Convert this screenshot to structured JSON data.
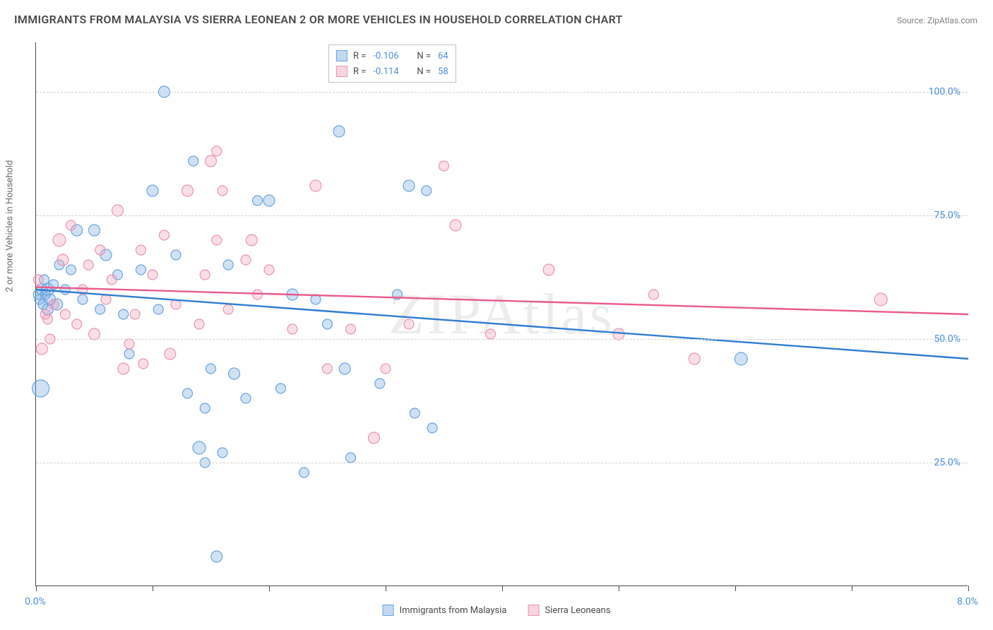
{
  "title": "IMMIGRANTS FROM MALAYSIA VS SIERRA LEONEAN 2 OR MORE VEHICLES IN HOUSEHOLD CORRELATION CHART",
  "source_label": "Source: ",
  "source_value": "ZipAtlas.com",
  "y_axis_label": "2 or more Vehicles in Household",
  "watermark": "ZIPAtlas",
  "chart": {
    "type": "scatter",
    "xlim": [
      0,
      8.0
    ],
    "ylim": [
      0,
      110
    ],
    "x_ticks": [
      0,
      1,
      2,
      3,
      4,
      5,
      6,
      7,
      8
    ],
    "x_tick_labels_shown": {
      "0": "0.0%",
      "8": "8.0%"
    },
    "y_grid": [
      25,
      50,
      75,
      100
    ],
    "y_tick_labels": {
      "25": "25.0%",
      "50": "50.0%",
      "75": "75.0%",
      "100": "100.0%"
    },
    "background_color": "#ffffff",
    "grid_color": "#d0d0d0",
    "axis_color": "#4a4a4a",
    "tick_label_color": "#4a8fd8",
    "series": [
      {
        "name": "Immigrants from Malaysia",
        "fill_color": "rgba(120,170,225,0.35)",
        "stroke_color": "#6aa6de",
        "line_color": "#2f7dd1",
        "r_value": "-0.106",
        "n_value": "64",
        "regression": {
          "x1": 0,
          "y1": 60,
          "x2": 8,
          "y2": 46
        },
        "points": [
          {
            "x": 0.02,
            "y": 59,
            "r": 7
          },
          {
            "x": 0.03,
            "y": 58,
            "r": 7
          },
          {
            "x": 0.05,
            "y": 60,
            "r": 8
          },
          {
            "x": 0.06,
            "y": 57,
            "r": 7
          },
          {
            "x": 0.07,
            "y": 62,
            "r": 7
          },
          {
            "x": 0.08,
            "y": 59,
            "r": 7
          },
          {
            "x": 0.1,
            "y": 60,
            "r": 9
          },
          {
            "x": 0.1,
            "y": 56,
            "r": 8
          },
          {
            "x": 0.04,
            "y": 40,
            "r": 12
          },
          {
            "x": 0.12,
            "y": 58,
            "r": 8
          },
          {
            "x": 0.15,
            "y": 61,
            "r": 7
          },
          {
            "x": 0.18,
            "y": 57,
            "r": 8
          },
          {
            "x": 0.2,
            "y": 65,
            "r": 7
          },
          {
            "x": 0.25,
            "y": 60,
            "r": 7
          },
          {
            "x": 0.3,
            "y": 64,
            "r": 7
          },
          {
            "x": 0.35,
            "y": 72,
            "r": 8
          },
          {
            "x": 0.4,
            "y": 58,
            "r": 7
          },
          {
            "x": 0.5,
            "y": 72,
            "r": 8
          },
          {
            "x": 0.55,
            "y": 56,
            "r": 7
          },
          {
            "x": 0.6,
            "y": 67,
            "r": 8
          },
          {
            "x": 0.7,
            "y": 63,
            "r": 7
          },
          {
            "x": 0.75,
            "y": 55,
            "r": 7
          },
          {
            "x": 0.8,
            "y": 47,
            "r": 7
          },
          {
            "x": 0.9,
            "y": 64,
            "r": 7
          },
          {
            "x": 1.0,
            "y": 80,
            "r": 8
          },
          {
            "x": 1.05,
            "y": 56,
            "r": 7
          },
          {
            "x": 1.1,
            "y": 100,
            "r": 8
          },
          {
            "x": 1.2,
            "y": 67,
            "r": 7
          },
          {
            "x": 1.3,
            "y": 39,
            "r": 7
          },
          {
            "x": 1.35,
            "y": 86,
            "r": 7
          },
          {
            "x": 1.4,
            "y": 28,
            "r": 9
          },
          {
            "x": 1.45,
            "y": 25,
            "r": 7
          },
          {
            "x": 1.45,
            "y": 36,
            "r": 7
          },
          {
            "x": 1.5,
            "y": 44,
            "r": 7
          },
          {
            "x": 1.55,
            "y": 6,
            "r": 8
          },
          {
            "x": 1.6,
            "y": 27,
            "r": 7
          },
          {
            "x": 1.65,
            "y": 65,
            "r": 7
          },
          {
            "x": 1.7,
            "y": 43,
            "r": 8
          },
          {
            "x": 1.8,
            "y": 38,
            "r": 7
          },
          {
            "x": 1.9,
            "y": 78,
            "r": 7
          },
          {
            "x": 2.0,
            "y": 78,
            "r": 8
          },
          {
            "x": 2.1,
            "y": 40,
            "r": 7
          },
          {
            "x": 2.2,
            "y": 59,
            "r": 8
          },
          {
            "x": 2.3,
            "y": 23,
            "r": 7
          },
          {
            "x": 2.4,
            "y": 58,
            "r": 7
          },
          {
            "x": 2.5,
            "y": 53,
            "r": 7
          },
          {
            "x": 2.6,
            "y": 92,
            "r": 8
          },
          {
            "x": 2.65,
            "y": 44,
            "r": 8
          },
          {
            "x": 2.7,
            "y": 26,
            "r": 7
          },
          {
            "x": 2.95,
            "y": 41,
            "r": 7
          },
          {
            "x": 3.1,
            "y": 59,
            "r": 7
          },
          {
            "x": 3.2,
            "y": 81,
            "r": 8
          },
          {
            "x": 3.25,
            "y": 35,
            "r": 7
          },
          {
            "x": 3.35,
            "y": 80,
            "r": 7
          },
          {
            "x": 3.4,
            "y": 32,
            "r": 7
          },
          {
            "x": 6.05,
            "y": 46,
            "r": 9
          }
        ]
      },
      {
        "name": "Sierra Leoneans",
        "fill_color": "rgba(245,160,185,0.35)",
        "stroke_color": "#ea95b2",
        "line_color": "#e85a8a",
        "r_value": "-0.114",
        "n_value": "58",
        "regression": {
          "x1": 0,
          "y1": 60.5,
          "x2": 8,
          "y2": 55
        },
        "points": [
          {
            "x": 0.02,
            "y": 62,
            "r": 7
          },
          {
            "x": 0.05,
            "y": 48,
            "r": 8
          },
          {
            "x": 0.08,
            "y": 55,
            "r": 7
          },
          {
            "x": 0.1,
            "y": 54,
            "r": 7
          },
          {
            "x": 0.12,
            "y": 50,
            "r": 7
          },
          {
            "x": 0.15,
            "y": 57,
            "r": 7
          },
          {
            "x": 0.2,
            "y": 70,
            "r": 9
          },
          {
            "x": 0.23,
            "y": 66,
            "r": 8
          },
          {
            "x": 0.25,
            "y": 55,
            "r": 7
          },
          {
            "x": 0.3,
            "y": 73,
            "r": 7
          },
          {
            "x": 0.35,
            "y": 53,
            "r": 7
          },
          {
            "x": 0.4,
            "y": 60,
            "r": 7
          },
          {
            "x": 0.45,
            "y": 65,
            "r": 7
          },
          {
            "x": 0.5,
            "y": 51,
            "r": 8
          },
          {
            "x": 0.55,
            "y": 68,
            "r": 7
          },
          {
            "x": 0.6,
            "y": 58,
            "r": 7
          },
          {
            "x": 0.65,
            "y": 62,
            "r": 7
          },
          {
            "x": 0.7,
            "y": 76,
            "r": 8
          },
          {
            "x": 0.75,
            "y": 44,
            "r": 8
          },
          {
            "x": 0.8,
            "y": 49,
            "r": 7
          },
          {
            "x": 0.85,
            "y": 55,
            "r": 7
          },
          {
            "x": 0.9,
            "y": 68,
            "r": 7
          },
          {
            "x": 0.92,
            "y": 45,
            "r": 7
          },
          {
            "x": 1.0,
            "y": 63,
            "r": 7
          },
          {
            "x": 1.1,
            "y": 71,
            "r": 7
          },
          {
            "x": 1.15,
            "y": 47,
            "r": 8
          },
          {
            "x": 1.2,
            "y": 57,
            "r": 7
          },
          {
            "x": 1.3,
            "y": 80,
            "r": 8
          },
          {
            "x": 1.4,
            "y": 53,
            "r": 7
          },
          {
            "x": 1.45,
            "y": 63,
            "r": 7
          },
          {
            "x": 1.5,
            "y": 86,
            "r": 8
          },
          {
            "x": 1.55,
            "y": 70,
            "r": 7
          },
          {
            "x": 1.55,
            "y": 88,
            "r": 7
          },
          {
            "x": 1.6,
            "y": 80,
            "r": 7
          },
          {
            "x": 1.65,
            "y": 56,
            "r": 7
          },
          {
            "x": 1.8,
            "y": 66,
            "r": 7
          },
          {
            "x": 1.85,
            "y": 70,
            "r": 8
          },
          {
            "x": 1.9,
            "y": 59,
            "r": 7
          },
          {
            "x": 2.0,
            "y": 64,
            "r": 7
          },
          {
            "x": 2.2,
            "y": 52,
            "r": 7
          },
          {
            "x": 2.4,
            "y": 81,
            "r": 8
          },
          {
            "x": 2.5,
            "y": 44,
            "r": 7
          },
          {
            "x": 2.7,
            "y": 52,
            "r": 7
          },
          {
            "x": 2.9,
            "y": 30,
            "r": 8
          },
          {
            "x": 3.0,
            "y": 44,
            "r": 7
          },
          {
            "x": 3.2,
            "y": 53,
            "r": 7
          },
          {
            "x": 3.5,
            "y": 85,
            "r": 7
          },
          {
            "x": 3.6,
            "y": 73,
            "r": 8
          },
          {
            "x": 3.9,
            "y": 51,
            "r": 7
          },
          {
            "x": 4.4,
            "y": 64,
            "r": 8
          },
          {
            "x": 5.0,
            "y": 51,
            "r": 8
          },
          {
            "x": 5.3,
            "y": 59,
            "r": 7
          },
          {
            "x": 5.65,
            "y": 46,
            "r": 8
          },
          {
            "x": 7.25,
            "y": 58,
            "r": 9
          }
        ]
      }
    ]
  },
  "legend_top": {
    "rows": [
      {
        "swatch_fill": "rgba(120,170,225,0.45)",
        "swatch_border": "#6aa6de",
        "r_label": "R =",
        "r_val": "-0.106",
        "n_label": "N =",
        "n_val": "64"
      },
      {
        "swatch_fill": "rgba(245,160,185,0.45)",
        "swatch_border": "#ea95b2",
        "r_label": "R =",
        "r_val": "-0.114",
        "n_label": "N =",
        "n_val": "58"
      }
    ]
  },
  "legend_bottom": [
    {
      "swatch_fill": "rgba(120,170,225,0.45)",
      "swatch_border": "#6aa6de",
      "label": "Immigrants from Malaysia"
    },
    {
      "swatch_fill": "rgba(245,160,185,0.45)",
      "swatch_border": "#ea95b2",
      "label": "Sierra Leoneans"
    }
  ]
}
